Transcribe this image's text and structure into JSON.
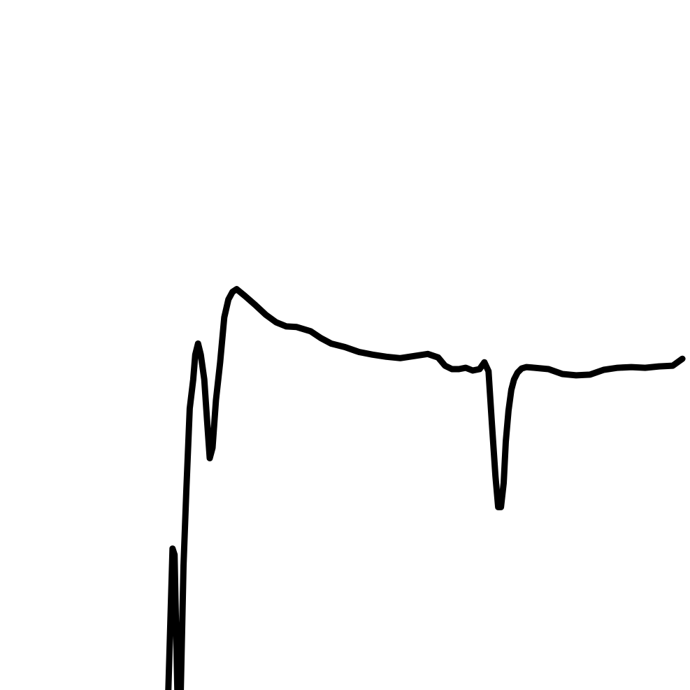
{
  "chart_data": {
    "type": "line",
    "title": "",
    "xlabel": "",
    "ylabel": "",
    "xlim": [
      0,
      100
    ],
    "ylim": [
      0,
      100
    ],
    "grid": false,
    "line_color": "#000000",
    "background_color": "#ffffff",
    "series": [
      {
        "x": [
          24.4,
          25.0,
          25.3,
          25.7,
          26.2,
          26.6,
          27.0,
          27.5,
          28.0,
          28.3,
          28.7,
          29.1,
          29.6,
          30.0,
          30.4,
          30.8,
          31.3,
          31.9,
          32.5,
          33.1,
          33.7,
          34.3,
          35.5,
          37.0,
          38.5,
          40.0,
          41.5,
          43.0,
          45.0,
          46.5,
          48.0,
          50.0,
          52.0,
          54.0,
          56.0,
          58.0,
          60.0,
          62.0,
          63.5,
          64.5,
          65.5,
          66.5,
          67.5,
          68.5,
          69.5,
          70.2,
          70.8,
          71.3,
          71.8,
          72.2,
          72.6,
          73.0,
          73.3,
          73.7,
          74.1,
          74.5,
          75.0,
          75.6,
          76.3,
          77.5,
          79.5,
          81.5,
          83.5,
          85.5,
          87.5,
          89.5,
          91.5,
          93.5,
          95.5,
          97.5,
          98.9
        ],
        "y": [
          0.0,
          20.5,
          19.6,
          0.0,
          0.0,
          18.0,
          28.8,
          40.8,
          45.0,
          48.6,
          50.2,
          48.6,
          45.0,
          39.2,
          33.6,
          35.1,
          42.0,
          47.5,
          54.0,
          56.6,
          57.7,
          58.1,
          57.1,
          55.8,
          54.4,
          53.3,
          52.7,
          52.6,
          52.0,
          51.0,
          50.2,
          49.7,
          49.0,
          48.6,
          48.3,
          48.1,
          48.4,
          48.7,
          48.2,
          47.0,
          46.5,
          46.5,
          46.7,
          46.3,
          46.5,
          47.5,
          46.2,
          38.5,
          31.0,
          26.5,
          26.5,
          30.0,
          36.0,
          40.5,
          43.5,
          45.0,
          46.0,
          46.6,
          46.8,
          46.7,
          46.5,
          45.8,
          45.6,
          45.7,
          46.4,
          46.7,
          46.8,
          46.7,
          46.9,
          47.0,
          48.0
        ]
      }
    ]
  }
}
